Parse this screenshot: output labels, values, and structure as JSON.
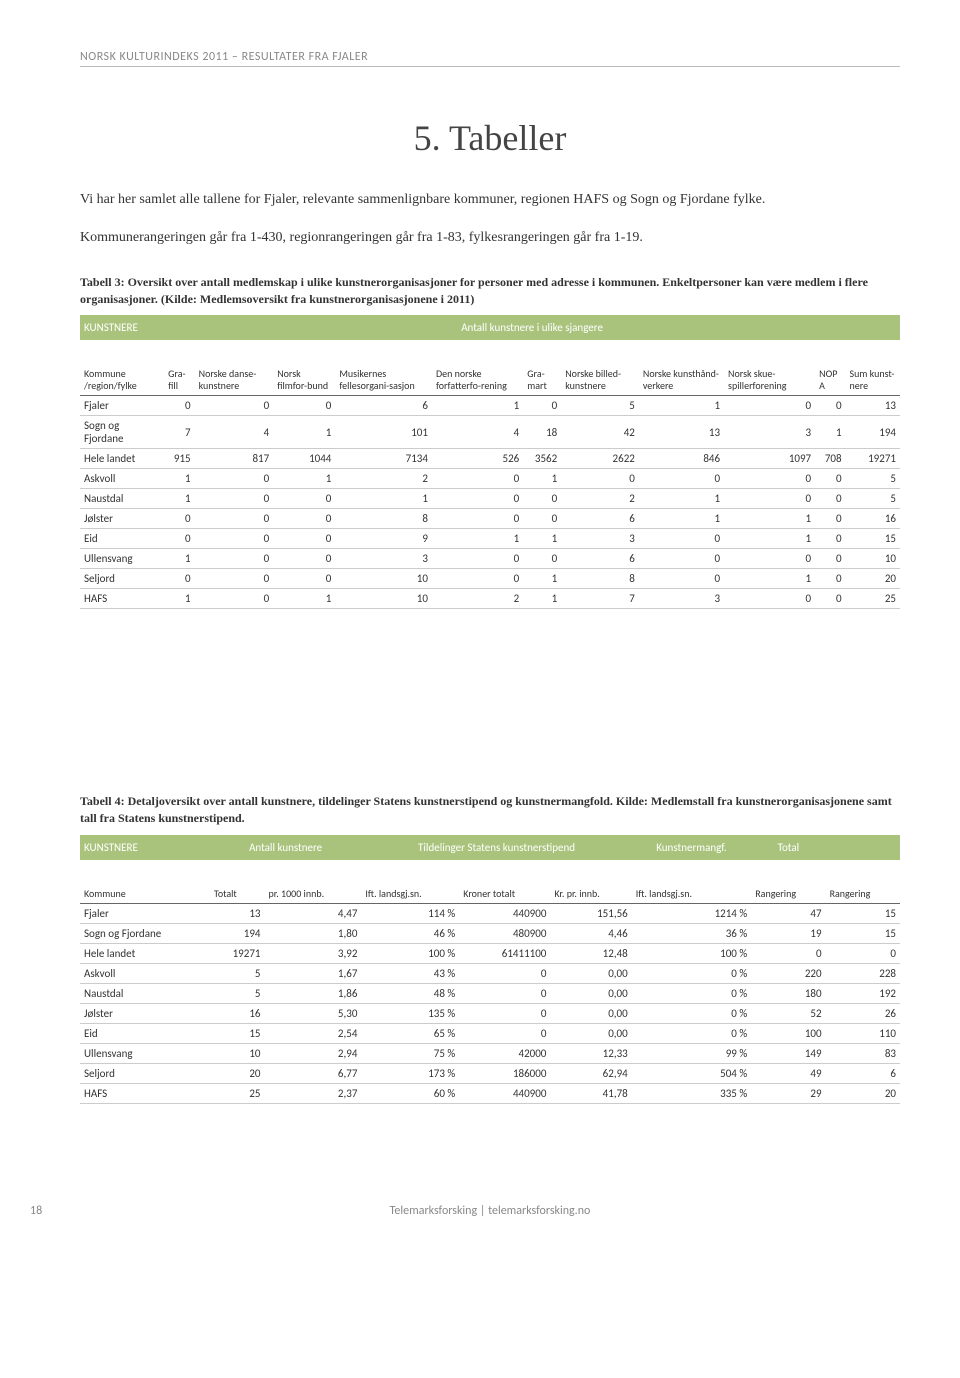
{
  "header": "NORSK KULTURINDEKS 2011 – RESULTATER FRA FJALER",
  "title": "5. Tabeller",
  "intro1": "Vi har her samlet alle tallene for Fjaler, relevante sammenlignbare kommuner, regionen HAFS og Sogn og Fjordane fylke.",
  "intro2": "Kommunerangeringen går fra 1-430, regionrangeringen går fra 1-83, fylkesrangeringen går fra 1-19.",
  "table3_caption": "Tabell 3: Oversikt over antall medlemskap i ulike kunstnerorganisasjoner for personer med adresse i kommunen. Enkeltpersoner kan være medlem i flere organisasjoner. (Kilde: Medlemsoversikt fra kunstnerorganisasjonene i 2011)",
  "table3": {
    "section_label": "KUNSTNERE",
    "section_span_label": "Antall kunstnere i ulike sjangere",
    "columns": [
      "Kommune /region/fylke",
      "Gra-fill",
      "Norske danse-kunstnere",
      "Norsk filmfor-bund",
      "Musikernes fellesorgani-sasjon",
      "Den norske forfatterfo-rening",
      "Gra-mart",
      "Norske billed-kunstnere",
      "Norske kunsthånd-verkere",
      "Norsk skue-spillerforening",
      "NOP A",
      "Sum kunst-nere"
    ],
    "rows": [
      [
        "Fjaler",
        "0",
        "0",
        "0",
        "6",
        "1",
        "0",
        "5",
        "1",
        "0",
        "0",
        "13"
      ],
      [
        "Sogn og Fjordane",
        "7",
        "4",
        "1",
        "101",
        "4",
        "18",
        "42",
        "13",
        "3",
        "1",
        "194"
      ],
      [
        "Hele landet",
        "915",
        "817",
        "1044",
        "7134",
        "526",
        "3562",
        "2622",
        "846",
        "1097",
        "708",
        "19271"
      ],
      [
        "Askvoll",
        "1",
        "0",
        "1",
        "2",
        "0",
        "1",
        "0",
        "0",
        "0",
        "0",
        "5"
      ],
      [
        "Naustdal",
        "1",
        "0",
        "0",
        "1",
        "0",
        "0",
        "2",
        "1",
        "0",
        "0",
        "5"
      ],
      [
        "Jølster",
        "0",
        "0",
        "0",
        "8",
        "0",
        "0",
        "6",
        "1",
        "1",
        "0",
        "16"
      ],
      [
        "Eid",
        "0",
        "0",
        "0",
        "9",
        "1",
        "1",
        "3",
        "0",
        "1",
        "0",
        "15"
      ],
      [
        "Ullensvang",
        "1",
        "0",
        "0",
        "3",
        "0",
        "0",
        "6",
        "0",
        "0",
        "0",
        "10"
      ],
      [
        "Seljord",
        "0",
        "0",
        "0",
        "10",
        "0",
        "1",
        "8",
        "0",
        "1",
        "0",
        "20"
      ],
      [
        "HAFS",
        "1",
        "0",
        "1",
        "10",
        "2",
        "1",
        "7",
        "3",
        "0",
        "0",
        "25"
      ]
    ]
  },
  "table4_caption": "Tabell 4: Detaljoversikt over antall kunstnere, tildelinger Statens kunstnerstipend og kunstnermangfold. Kilde: Medlemstall fra kunstnerorganisasjonene samt tall fra Statens kunstnerstipend.",
  "table4": {
    "section_label": "KUNSTNERE",
    "sections": [
      "Antall kunstnere",
      "Tildelinger Statens kunstnerstipend",
      "Kunstnermangf.",
      "Total"
    ],
    "columns": [
      "Kommune",
      "Totalt",
      "pr. 1000 innb.",
      "Ift. landsgj.sn.",
      "Kroner totalt",
      "Kr. pr. innb.",
      "Ift. landsgj.sn.",
      "Rangering",
      "Rangering"
    ],
    "rows": [
      [
        "Fjaler",
        "13",
        "4,47",
        "114 %",
        "440900",
        "151,56",
        "1214 %",
        "47",
        "15"
      ],
      [
        "Sogn og Fjordane",
        "194",
        "1,80",
        "46 %",
        "480900",
        "4,46",
        "36 %",
        "19",
        "15"
      ],
      [
        "Hele landet",
        "19271",
        "3,92",
        "100 %",
        "61411100",
        "12,48",
        "100 %",
        "0",
        "0"
      ],
      [
        "Askvoll",
        "5",
        "1,67",
        "43 %",
        "0",
        "0,00",
        "0 %",
        "220",
        "228"
      ],
      [
        "Naustdal",
        "5",
        "1,86",
        "48 %",
        "0",
        "0,00",
        "0 %",
        "180",
        "192"
      ],
      [
        "Jølster",
        "16",
        "5,30",
        "135 %",
        "0",
        "0,00",
        "0 %",
        "52",
        "26"
      ],
      [
        "Eid",
        "15",
        "2,54",
        "65 %",
        "0",
        "0,00",
        "0 %",
        "100",
        "110"
      ],
      [
        "Ullensvang",
        "10",
        "2,94",
        "75 %",
        "42000",
        "12,33",
        "99 %",
        "149",
        "83"
      ],
      [
        "Seljord",
        "20",
        "6,77",
        "173 %",
        "186000",
        "62,94",
        "504 %",
        "49",
        "6"
      ],
      [
        "HAFS",
        "25",
        "2,37",
        "60 %",
        "440900",
        "41,78",
        "335 %",
        "29",
        "20"
      ]
    ]
  },
  "footer": "Telemarksforsking  |  telemarksforsking.no",
  "page_num": "18"
}
